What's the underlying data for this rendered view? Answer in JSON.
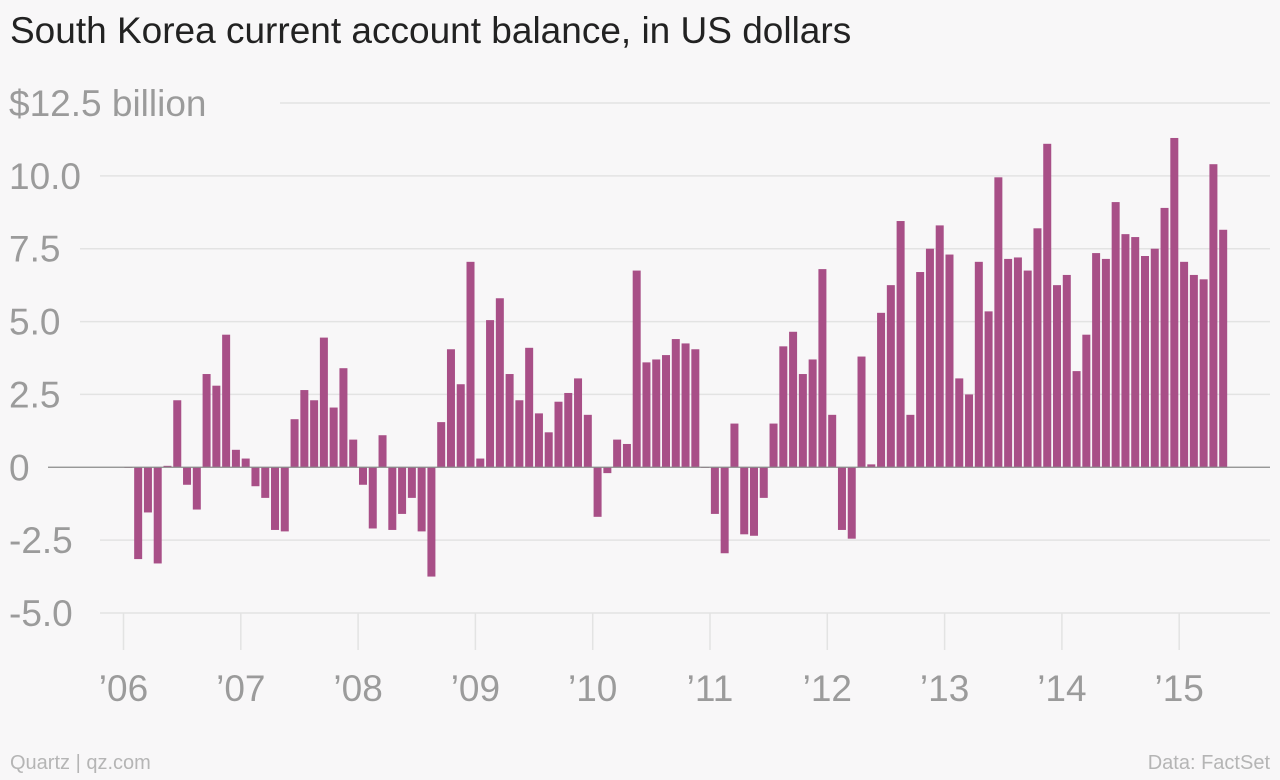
{
  "header": {
    "title": "South Korea current account balance, in US dollars"
  },
  "footer": {
    "source_left": "Quartz | qz.com",
    "source_right": "Data: FactSet"
  },
  "colors": {
    "bar": "#a84f87",
    "grid": "#e3e3e3",
    "zero": "#8a8a8a",
    "tick_text": "#9b9b9b",
    "background": "#f8f7f8"
  },
  "chart_data": {
    "type": "bar",
    "title": "South Korea current account balance, in US dollars",
    "xlabel": "",
    "ylabel": "",
    "ylim": [
      -5.0,
      12.5
    ],
    "y_ticks": [
      12.5,
      10.0,
      7.5,
      5.0,
      2.5,
      0,
      -2.5,
      -5.0
    ],
    "y_tick_labels": [
      "$12.5 billion",
      "10.0",
      "7.5",
      "5.0",
      "2.5",
      "0",
      "-2.5",
      "-5.0"
    ],
    "x_tick_labels": [
      "’06",
      "’07",
      "’08",
      "’09",
      "’10",
      "’11",
      "’12",
      "’13",
      "’14",
      "’15"
    ],
    "grid": true,
    "frequency": "monthly",
    "start": "2006-01",
    "series": [
      {
        "values": [
          0.0,
          -3.15,
          -1.55,
          -3.3,
          0.05,
          2.3,
          -0.6,
          -1.45,
          3.2,
          2.8,
          4.55,
          0.6,
          0.3,
          -0.65,
          -1.05,
          -2.15,
          -2.2,
          1.65,
          2.65,
          2.3,
          4.45,
          2.05,
          3.4,
          0.95,
          -0.6,
          -2.1,
          1.1,
          -2.15,
          -1.6,
          -1.05,
          -2.2,
          -3.75,
          1.55,
          4.05,
          2.85,
          7.05,
          0.3,
          5.05,
          5.8,
          3.2,
          2.3,
          4.1,
          1.85,
          1.2,
          2.25,
          2.55,
          3.05,
          1.8,
          -1.7,
          -0.2,
          0.95,
          0.8,
          6.75,
          3.6,
          3.7,
          3.85,
          4.4,
          4.25,
          4.05,
          0.0,
          -1.6,
          -2.95,
          1.5,
          -2.3,
          -2.35,
          -1.05,
          1.5,
          4.15,
          4.65,
          3.2,
          3.7,
          6.8,
          1.8,
          -2.15,
          -2.45,
          3.8,
          0.1,
          5.3,
          6.25,
          8.45,
          1.8,
          6.7,
          7.5,
          8.3,
          7.3,
          3.05,
          2.5,
          7.05,
          5.35,
          9.95,
          7.15,
          7.2,
          6.75,
          8.2,
          11.1,
          6.25,
          6.6,
          3.3,
          4.55,
          7.35,
          7.15,
          9.1,
          8.0,
          7.9,
          7.25,
          7.5,
          8.9,
          11.3,
          7.05,
          6.6,
          6.45,
          10.4,
          8.15
        ]
      }
    ]
  }
}
